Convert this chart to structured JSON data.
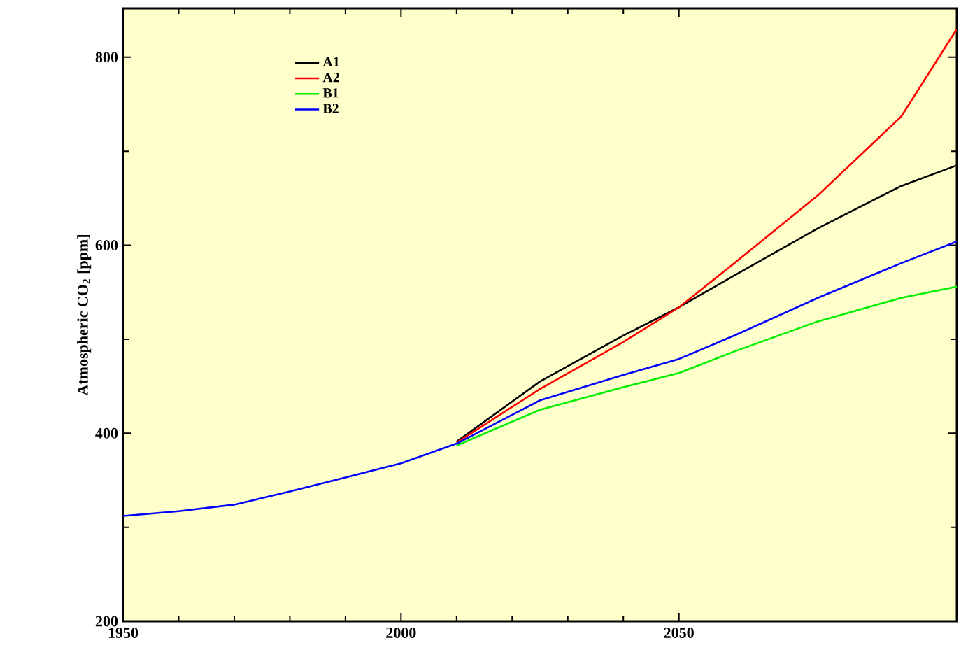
{
  "chart_data": {
    "type": "line",
    "ylabel": "Atmospheric CO$_{2}$ [ppm]",
    "xlim": [
      1950,
      2100
    ],
    "ylim": [
      200,
      852
    ],
    "xticks": [
      1950,
      2000,
      2050
    ],
    "yticks": [
      200,
      400,
      600,
      800
    ],
    "legend": "top left",
    "grid": false,
    "marker": "none",
    "line_style": "solid",
    "series": [
      {
        "name": "A1",
        "color": "#000000",
        "x": [
          2010,
          2025,
          2040,
          2050,
          2060,
          2075,
          2090,
          2100
        ],
        "values": [
          391,
          455,
          504,
          534,
          568,
          618,
          663,
          685
        ]
      },
      {
        "name": "A2",
        "color": "#ff0000",
        "x": [
          2010,
          2025,
          2040,
          2050,
          2060,
          2075,
          2090,
          2100
        ],
        "values": [
          390,
          447,
          497,
          534,
          581,
          653,
          737,
          830
        ]
      },
      {
        "name": "B1",
        "color": "#00ee00",
        "x": [
          2010,
          2025,
          2040,
          2050,
          2060,
          2075,
          2090,
          2100
        ],
        "values": [
          387,
          425,
          449,
          464,
          487,
          519,
          544,
          556
        ]
      },
      {
        "name": "B2",
        "color": "#0000ff",
        "x": [
          1950,
          1960,
          1970,
          1980,
          1990,
          2000,
          2010,
          2025,
          2040,
          2050,
          2060,
          2075,
          2090,
          2100
        ],
        "values": [
          312,
          317,
          324,
          338,
          353,
          368,
          389,
          435,
          462,
          479,
          504,
          544,
          581,
          604
        ]
      }
    ]
  }
}
